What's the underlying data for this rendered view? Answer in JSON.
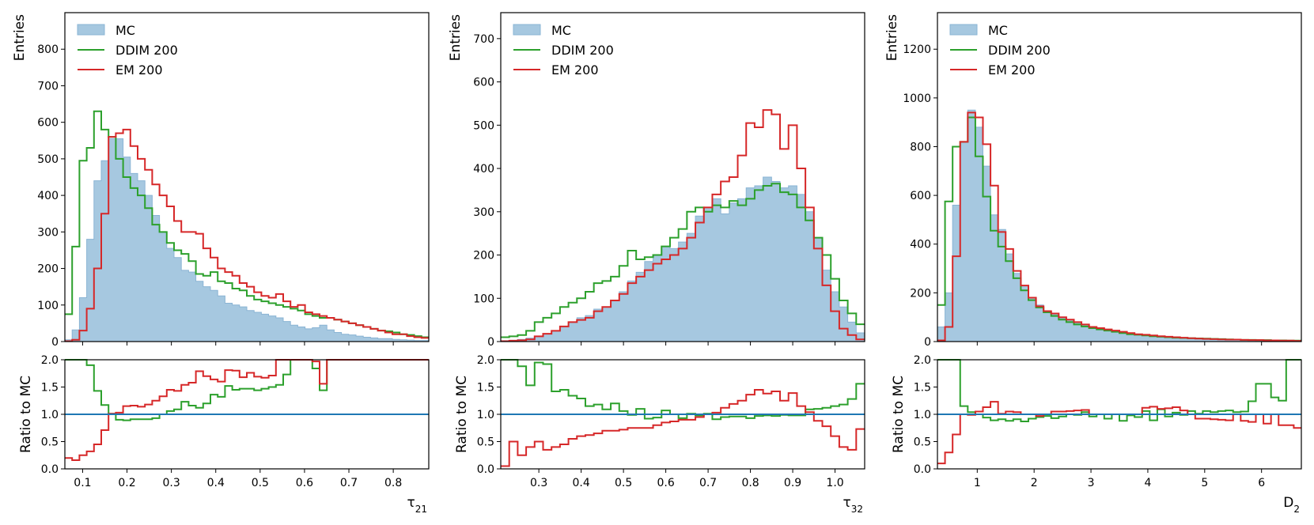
{
  "colors": {
    "mc_fill": "#a6c8e0",
    "mc_edge": "#8ab4d4",
    "ddim": "#2ca02c",
    "em": "#d62728",
    "reference_line": "#1f77b4"
  },
  "chart_data": [
    {
      "type": "histogram",
      "xlabel": "τ21",
      "ylabel": "Entries",
      "ratio_ylabel": "Ratio to MC",
      "xlim": [
        0.06,
        0.88
      ],
      "ylim": [
        0,
        900
      ],
      "ratio_ylim": [
        0,
        2
      ],
      "xticks": [
        "0.1",
        "0.2",
        "0.3",
        "0.4",
        "0.5",
        "0.6",
        "0.7",
        "0.8"
      ],
      "xtick_values": [
        0.1,
        0.2,
        0.3,
        0.4,
        0.5,
        0.6,
        0.7,
        0.8
      ],
      "yticks": [
        "0",
        "100",
        "200",
        "300",
        "400",
        "500",
        "600",
        "700",
        "800"
      ],
      "ytick_values": [
        0,
        100,
        200,
        300,
        400,
        500,
        600,
        700,
        800
      ],
      "ratio_yticks": [
        "0.0",
        "0.5",
        "1.0",
        "1.5",
        "2.0"
      ],
      "ratio_ytick_values": [
        0,
        0.5,
        1,
        1.5,
        2
      ],
      "legend": {
        "placement": "top-left",
        "entries": [
          "MC",
          "DDIM 200",
          "EM 200"
        ]
      },
      "series": [
        {
          "name": "MC",
          "style": "filled",
          "values": [
            5,
            32,
            120,
            280,
            440,
            495,
            555,
            555,
            505,
            460,
            440,
            400,
            345,
            300,
            255,
            230,
            195,
            190,
            165,
            150,
            140,
            125,
            105,
            100,
            95,
            85,
            80,
            75,
            70,
            65,
            55,
            45,
            40,
            35,
            38,
            45,
            32,
            25,
            20,
            18,
            15,
            12,
            10,
            8,
            8,
            6,
            5,
            4,
            3,
            3
          ]
        },
        {
          "name": "DDIM 200",
          "style": "step",
          "values": [
            75,
            260,
            495,
            530,
            630,
            580,
            560,
            500,
            450,
            420,
            400,
            365,
            320,
            300,
            270,
            250,
            240,
            220,
            185,
            180,
            190,
            165,
            160,
            145,
            140,
            125,
            115,
            110,
            105,
            100,
            95,
            90,
            85,
            75,
            70,
            65,
            65,
            60,
            55,
            50,
            45,
            40,
            35,
            30,
            28,
            25,
            20,
            18,
            15,
            12
          ]
        },
        {
          "name": "EM 200",
          "style": "step",
          "values": [
            1,
            5,
            30,
            90,
            200,
            350,
            560,
            570,
            580,
            535,
            500,
            470,
            430,
            400,
            370,
            330,
            300,
            300,
            295,
            255,
            230,
            200,
            190,
            180,
            160,
            150,
            135,
            125,
            120,
            130,
            110,
            95,
            100,
            80,
            75,
            70,
            65,
            60,
            55,
            50,
            45,
            40,
            35,
            30,
            25,
            20,
            20,
            15,
            12,
            10
          ]
        }
      ],
      "ratio": [
        {
          "name": "DDIM 200",
          "values": [
            2.0,
            2.0,
            2.0,
            1.9,
            1.43,
            1.17,
            1.01,
            0.9,
            0.89,
            0.91,
            0.91,
            0.91,
            0.93,
            1.0,
            1.06,
            1.09,
            1.23,
            1.16,
            1.12,
            1.2,
            1.36,
            1.32,
            1.52,
            1.45,
            1.47,
            1.47,
            1.44,
            1.47,
            1.5,
            1.54,
            1.73,
            2.0,
            2.0,
            2.0,
            1.84,
            1.44,
            2.0,
            2.0,
            2.0,
            2.0,
            2.0,
            2.0,
            2.0,
            2.0,
            2.0,
            2.0,
            2.0,
            2.0,
            2.0,
            2.0
          ]
        },
        {
          "name": "EM 200",
          "values": [
            0.2,
            0.16,
            0.25,
            0.32,
            0.45,
            0.71,
            1.01,
            1.03,
            1.15,
            1.16,
            1.14,
            1.18,
            1.25,
            1.33,
            1.45,
            1.43,
            1.54,
            1.58,
            1.79,
            1.7,
            1.64,
            1.6,
            1.81,
            1.8,
            1.68,
            1.76,
            1.69,
            1.67,
            1.71,
            2.0,
            2.0,
            2.0,
            2.0,
            2.0,
            1.97,
            1.56,
            2.0,
            2.0,
            2.0,
            2.0,
            2.0,
            2.0,
            2.0,
            2.0,
            2.0,
            2.0,
            2.0,
            2.0,
            2.0,
            2.0
          ]
        }
      ]
    },
    {
      "type": "histogram",
      "xlabel": "τ32",
      "ylabel": "Entries",
      "ratio_ylabel": "Ratio to MC",
      "xlim": [
        0.21,
        1.07
      ],
      "ylim": [
        0,
        760
      ],
      "ratio_ylim": [
        0,
        2
      ],
      "xticks": [
        "0.3",
        "0.4",
        "0.5",
        "0.6",
        "0.7",
        "0.8",
        "0.9",
        "1.0"
      ],
      "xtick_values": [
        0.3,
        0.4,
        0.5,
        0.6,
        0.7,
        0.8,
        0.9,
        1.0
      ],
      "yticks": [
        "0",
        "100",
        "200",
        "300",
        "400",
        "500",
        "600",
        "700"
      ],
      "ytick_values": [
        0,
        100,
        200,
        300,
        400,
        500,
        600,
        700
      ],
      "ratio_yticks": [
        "0.0",
        "0.5",
        "1.0",
        "1.5",
        "2.0"
      ],
      "ratio_ytick_values": [
        0,
        0.5,
        1,
        1.5,
        2
      ],
      "legend": {
        "placement": "top-left",
        "entries": [
          "MC",
          "DDIM 200",
          "EM 200"
        ]
      },
      "series": [
        {
          "name": "MC",
          "style": "filled",
          "values": [
            2,
            3,
            5,
            8,
            12,
            18,
            25,
            35,
            45,
            55,
            60,
            75,
            80,
            95,
            115,
            140,
            160,
            185,
            200,
            220,
            215,
            230,
            250,
            290,
            310,
            330,
            295,
            320,
            330,
            355,
            360,
            380,
            370,
            355,
            360,
            340,
            300,
            240,
            165,
            115,
            80,
            45,
            20
          ]
        },
        {
          "name": "DDIM 200",
          "style": "step",
          "values": [
            10,
            12,
            15,
            25,
            45,
            55,
            65,
            80,
            90,
            100,
            115,
            135,
            140,
            150,
            175,
            210,
            190,
            195,
            200,
            220,
            240,
            260,
            300,
            310,
            300,
            315,
            310,
            325,
            315,
            330,
            350,
            360,
            365,
            345,
            340,
            310,
            280,
            240,
            200,
            145,
            95,
            65,
            40
          ]
        },
        {
          "name": "EM 200",
          "style": "step",
          "values": [
            1,
            2,
            3,
            5,
            12,
            18,
            25,
            35,
            45,
            50,
            55,
            70,
            80,
            95,
            110,
            135,
            150,
            165,
            180,
            190,
            200,
            215,
            240,
            275,
            310,
            340,
            370,
            380,
            430,
            505,
            495,
            535,
            525,
            445,
            500,
            400,
            310,
            215,
            130,
            70,
            30,
            15,
            5
          ]
        }
      ],
      "ratio": [
        {
          "name": "DDIM 200",
          "values": [
            2.0,
            2.0,
            1.88,
            1.53,
            1.95,
            1.92,
            1.42,
            1.45,
            1.34,
            1.29,
            1.15,
            1.18,
            1.09,
            1.2,
            1.06,
            0.99,
            1.1,
            0.92,
            0.94,
            1.07,
            1.0,
            0.93,
            1.01,
            0.98,
            1.01,
            0.91,
            0.95,
            0.96,
            0.96,
            0.93,
            0.97,
            0.98,
            0.97,
            0.99,
            0.98,
            0.98,
            1.09,
            1.1,
            1.12,
            1.15,
            1.18,
            1.28,
            1.56
          ]
        },
        {
          "name": "EM 200",
          "values": [
            0.05,
            0.5,
            0.25,
            0.4,
            0.5,
            0.35,
            0.4,
            0.45,
            0.55,
            0.6,
            0.62,
            0.65,
            0.7,
            0.7,
            0.72,
            0.75,
            0.75,
            0.75,
            0.8,
            0.85,
            0.87,
            0.9,
            0.9,
            0.95,
            1.0,
            1.03,
            1.12,
            1.19,
            1.25,
            1.36,
            1.45,
            1.38,
            1.42,
            1.25,
            1.39,
            1.15,
            1.04,
            0.88,
            0.78,
            0.6,
            0.4,
            0.35,
            0.73
          ]
        }
      ]
    },
    {
      "type": "histogram",
      "xlabel": "D2",
      "ylabel": "Entries",
      "ratio_ylabel": "Ratio to MC",
      "xlim": [
        0.3,
        6.7
      ],
      "ylim": [
        0,
        1350
      ],
      "ratio_ylim": [
        0,
        2
      ],
      "xticks": [
        "1",
        "2",
        "3",
        "4",
        "5",
        "6"
      ],
      "xtick_values": [
        1,
        2,
        3,
        4,
        5,
        6
      ],
      "yticks": [
        "0",
        "200",
        "400",
        "600",
        "800",
        "1000",
        "1200"
      ],
      "ytick_values": [
        0,
        200,
        400,
        600,
        800,
        1000,
        1200
      ],
      "ratio_yticks": [
        "0.0",
        "0.5",
        "1.0",
        "1.5",
        "2.0"
      ],
      "ratio_ytick_values": [
        0,
        0.5,
        1,
        1.5,
        2
      ],
      "legend": {
        "placement": "top-left",
        "entries": [
          "MC",
          "DDIM 200",
          "EM 200"
        ]
      },
      "series": [
        {
          "name": "MC",
          "style": "filled",
          "values": [
            60,
            200,
            560,
            820,
            950,
            880,
            720,
            520,
            460,
            360,
            280,
            230,
            180,
            150,
            125,
            110,
            95,
            85,
            75,
            65,
            60,
            55,
            50,
            45,
            40,
            35,
            30,
            25,
            22,
            20,
            18,
            16,
            15,
            14,
            13,
            12,
            11,
            10,
            9,
            8,
            8,
            7,
            6,
            6,
            5,
            5,
            5,
            4
          ]
        },
        {
          "name": "DDIM 200",
          "style": "step",
          "values": [
            150,
            575,
            800,
            820,
            920,
            760,
            595,
            455,
            390,
            330,
            260,
            210,
            170,
            140,
            120,
            105,
            90,
            80,
            70,
            62,
            55,
            50,
            45,
            40,
            35,
            30,
            28,
            25,
            22,
            20,
            18,
            16,
            15,
            14,
            13,
            12,
            11,
            10,
            9,
            8,
            7,
            7,
            6,
            6,
            5,
            5,
            4,
            4
          ]
        },
        {
          "name": "EM 200",
          "style": "step",
          "values": [
            5,
            60,
            350,
            820,
            940,
            920,
            810,
            640,
            450,
            380,
            290,
            230,
            180,
            145,
            125,
            115,
            100,
            90,
            80,
            70,
            60,
            55,
            50,
            45,
            40,
            35,
            30,
            28,
            25,
            22,
            20,
            18,
            16,
            14,
            12,
            11,
            10,
            9,
            8,
            8,
            7,
            6,
            6,
            5,
            5,
            4,
            4,
            3
          ]
        }
      ],
      "ratio": [
        {
          "name": "DDIM 200",
          "values": [
            2.0,
            2.0,
            2.0,
            1.15,
            1.04,
            1.0,
            0.94,
            0.89,
            0.91,
            0.88,
            0.91,
            0.87,
            0.92,
            0.95,
            0.97,
            0.93,
            0.96,
            1.0,
            0.99,
            1.04,
            0.96,
            1.0,
            0.92,
            1.0,
            0.88,
            0.98,
            0.95,
            1.06,
            0.89,
            1.09,
            0.96,
            1.03,
            0.99,
            1.06,
            1.01,
            1.06,
            1.04,
            1.06,
            1.07,
            1.04,
            1.05,
            1.24,
            1.56,
            1.56,
            1.31,
            1.25,
            2.0,
            2.0
          ]
        },
        {
          "name": "EM 200",
          "values": [
            0.1,
            0.3,
            0.63,
            1.0,
            0.99,
            1.05,
            1.13,
            1.23,
            1.01,
            1.05,
            1.04,
            1.0,
            1.0,
            0.97,
            1.0,
            1.05,
            1.05,
            1.06,
            1.07,
            1.08,
            1.0,
            1.0,
            1.0,
            1.0,
            1.0,
            1.0,
            1.0,
            1.12,
            1.14,
            1.1,
            1.11,
            1.13,
            1.07,
            1.0,
            0.92,
            0.92,
            0.91,
            0.9,
            0.89,
            1.0,
            0.88,
            0.86,
            1.0,
            0.83,
            1.0,
            0.8,
            0.8,
            0.75
          ]
        }
      ]
    }
  ]
}
